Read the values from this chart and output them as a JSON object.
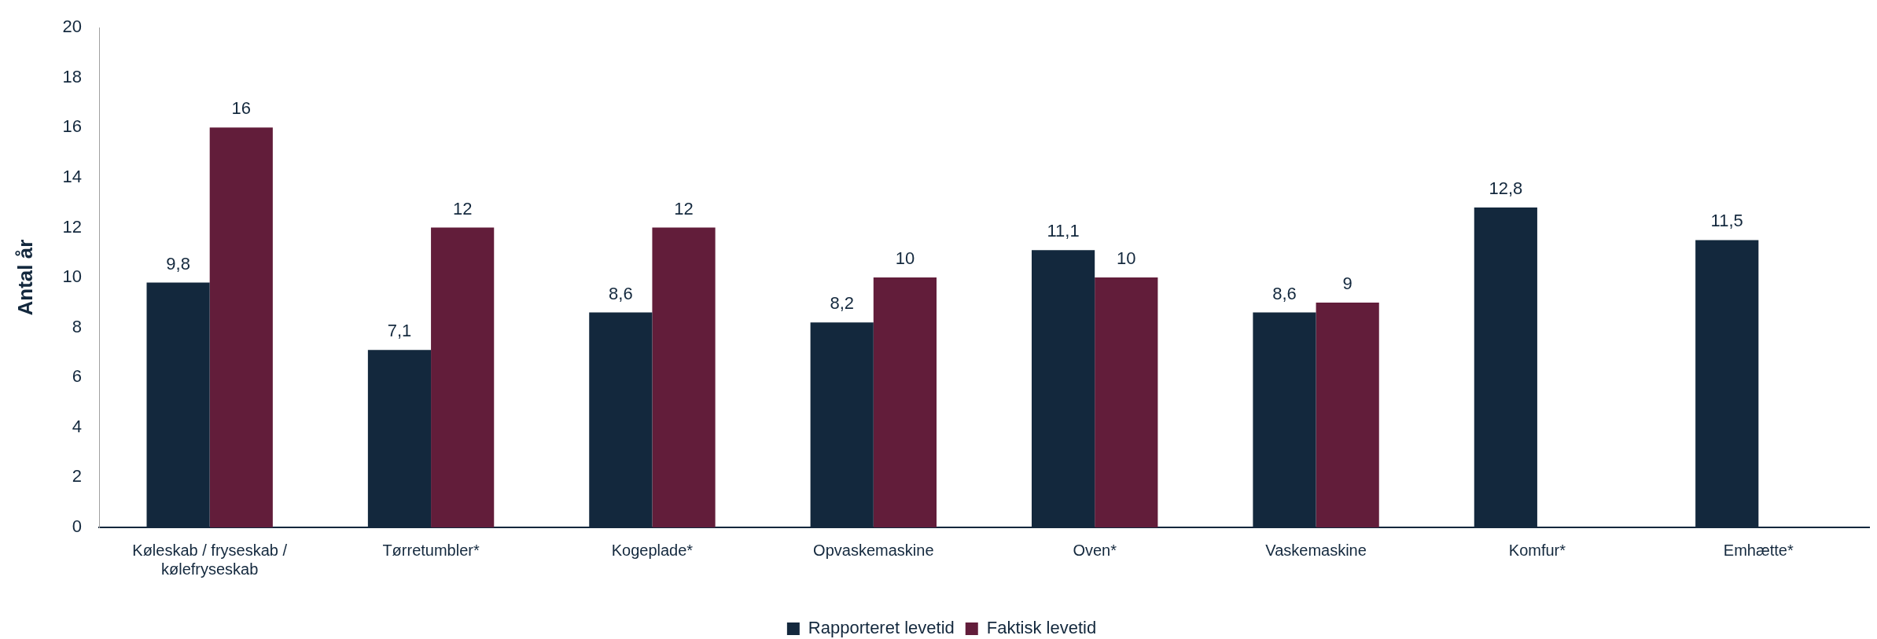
{
  "chart_data": {
    "type": "bar",
    "ylabel": "Antal år",
    "categories": [
      "Køleskab / fryseskab / kølefryseskab",
      "Tørretumbler*",
      "Kogeplade*",
      "Opvaskemaskine",
      "Oven*",
      "Vaskemaskine",
      "Komfur*",
      "Emhætte*"
    ],
    "series": [
      {
        "name": "Rapporteret levetid",
        "color": "#13283d",
        "values": [
          9.8,
          7.1,
          8.6,
          8.2,
          11.1,
          8.6,
          12.8,
          11.5
        ],
        "value_labels": [
          "9,8",
          "7,1",
          "8,6",
          "8,2",
          "11,1",
          "8,6",
          "12,8",
          "11,5"
        ]
      },
      {
        "name": "Faktisk levetid",
        "color": "#621d3a",
        "values": [
          16,
          12,
          12,
          10,
          10,
          9,
          null,
          null
        ],
        "value_labels": [
          "16",
          "12",
          "12",
          "10",
          "10",
          "9",
          null,
          null
        ]
      }
    ],
    "ylim": [
      0,
      20
    ],
    "yticks": [
      0,
      2,
      4,
      6,
      8,
      10,
      12,
      14,
      16,
      18,
      20
    ],
    "grid": false,
    "legend": "bottom"
  }
}
